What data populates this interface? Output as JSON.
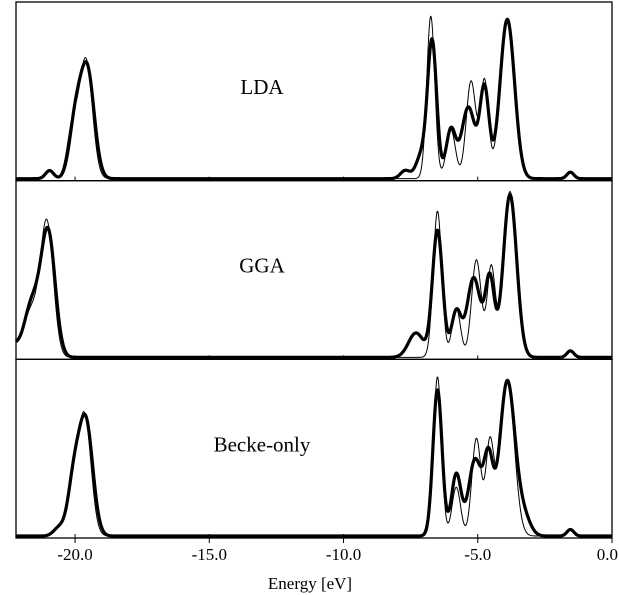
{
  "chart_data": {
    "type": "line",
    "xlabel": "Energy [eV]",
    "ylabel": "",
    "xlim": [
      -22.2,
      0.0
    ],
    "ylim": [
      0,
      1.08
    ],
    "x_ticks": [
      -20.0,
      -15.0,
      -10.0,
      -5.0,
      0.0
    ],
    "x_tick_labels": [
      "-20.0",
      "-15.0",
      "-10.0",
      "-5.0",
      "0.0"
    ],
    "grid": false,
    "panels": [
      {
        "label": "LDA",
        "series": [
          {
            "style": "thick",
            "peaks": [
              {
                "x": -19.55,
                "y": 0.67,
                "w": 0.26
              },
              {
                "x": -20.0,
                "y": 0.32,
                "w": 0.22
              },
              {
                "x": -20.95,
                "y": 0.05,
                "w": 0.15
              },
              {
                "x": -7.7,
                "y": 0.05,
                "w": 0.18
              },
              {
                "x": -7.1,
                "y": 0.14,
                "w": 0.2
              },
              {
                "x": -6.7,
                "y": 0.84,
                "w": 0.17
              },
              {
                "x": -6.0,
                "y": 0.3,
                "w": 0.18
              },
              {
                "x": -5.35,
                "y": 0.44,
                "w": 0.25
              },
              {
                "x": -4.75,
                "y": 0.55,
                "w": 0.17
              },
              {
                "x": -3.9,
                "y": 0.98,
                "w": 0.27
              },
              {
                "x": -1.55,
                "y": 0.04,
                "w": 0.13
              }
            ]
          },
          {
            "style": "thin",
            "peaks": [
              {
                "x": -19.6,
                "y": 0.73,
                "w": 0.24
              },
              {
                "x": -20.1,
                "y": 0.3,
                "w": 0.2
              },
              {
                "x": -20.95,
                "y": 0.05,
                "w": 0.15
              },
              {
                "x": -6.75,
                "y": 1.0,
                "w": 0.15
              },
              {
                "x": -6.0,
                "y": 0.3,
                "w": 0.17
              },
              {
                "x": -5.25,
                "y": 0.6,
                "w": 0.18
              },
              {
                "x": -4.75,
                "y": 0.6,
                "w": 0.15
              },
              {
                "x": -3.9,
                "y": 0.98,
                "w": 0.26
              },
              {
                "x": -1.55,
                "y": 0.04,
                "w": 0.13
              }
            ]
          }
        ]
      },
      {
        "label": "GGA",
        "series": [
          {
            "style": "thick",
            "peaks": [
              {
                "x": -21.0,
                "y": 0.75,
                "w": 0.26
              },
              {
                "x": -21.6,
                "y": 0.33,
                "w": 0.3
              },
              {
                "x": -22.3,
                "y": 0.06,
                "w": 0.18
              },
              {
                "x": -7.3,
                "y": 0.15,
                "w": 0.28
              },
              {
                "x": -6.5,
                "y": 0.78,
                "w": 0.19
              },
              {
                "x": -5.8,
                "y": 0.28,
                "w": 0.18
              },
              {
                "x": -5.15,
                "y": 0.49,
                "w": 0.25
              },
              {
                "x": -4.55,
                "y": 0.48,
                "w": 0.17
              },
              {
                "x": -3.8,
                "y": 1.0,
                "w": 0.25
              },
              {
                "x": -1.55,
                "y": 0.04,
                "w": 0.13
              }
            ]
          },
          {
            "style": "thin",
            "peaks": [
              {
                "x": -21.05,
                "y": 0.82,
                "w": 0.24
              },
              {
                "x": -21.65,
                "y": 0.28,
                "w": 0.28
              },
              {
                "x": -22.3,
                "y": 0.06,
                "w": 0.18
              },
              {
                "x": -6.5,
                "y": 0.9,
                "w": 0.16
              },
              {
                "x": -5.8,
                "y": 0.3,
                "w": 0.16
              },
              {
                "x": -5.05,
                "y": 0.6,
                "w": 0.18
              },
              {
                "x": -4.5,
                "y": 0.55,
                "w": 0.15
              },
              {
                "x": -3.8,
                "y": 1.02,
                "w": 0.24
              },
              {
                "x": -1.55,
                "y": 0.04,
                "w": 0.13
              }
            ]
          }
        ]
      },
      {
        "label": "Becke-only",
        "series": [
          {
            "style": "thick",
            "peaks": [
              {
                "x": -19.6,
                "y": 0.7,
                "w": 0.26
              },
              {
                "x": -20.05,
                "y": 0.32,
                "w": 0.22
              },
              {
                "x": -20.6,
                "y": 0.05,
                "w": 0.2
              },
              {
                "x": -6.5,
                "y": 0.9,
                "w": 0.17
              },
              {
                "x": -5.8,
                "y": 0.38,
                "w": 0.18
              },
              {
                "x": -5.1,
                "y": 0.47,
                "w": 0.24
              },
              {
                "x": -4.6,
                "y": 0.45,
                "w": 0.17
              },
              {
                "x": -3.9,
                "y": 0.95,
                "w": 0.28
              },
              {
                "x": -3.3,
                "y": 0.12,
                "w": 0.25
              },
              {
                "x": -1.55,
                "y": 0.04,
                "w": 0.13
              }
            ]
          },
          {
            "style": "thin",
            "peaks": [
              {
                "x": -19.65,
                "y": 0.74,
                "w": 0.24
              },
              {
                "x": -20.1,
                "y": 0.28,
                "w": 0.2
              },
              {
                "x": -20.6,
                "y": 0.05,
                "w": 0.2
              },
              {
                "x": -6.5,
                "y": 0.98,
                "w": 0.15
              },
              {
                "x": -5.8,
                "y": 0.3,
                "w": 0.16
              },
              {
                "x": -5.05,
                "y": 0.6,
                "w": 0.17
              },
              {
                "x": -4.55,
                "y": 0.56,
                "w": 0.15
              },
              {
                "x": -3.9,
                "y": 0.95,
                "w": 0.26
              },
              {
                "x": -1.55,
                "y": 0.04,
                "w": 0.13
              }
            ]
          }
        ]
      }
    ]
  },
  "colors": {
    "line": "#000000",
    "frame": "#000000",
    "background": "#ffffff"
  }
}
